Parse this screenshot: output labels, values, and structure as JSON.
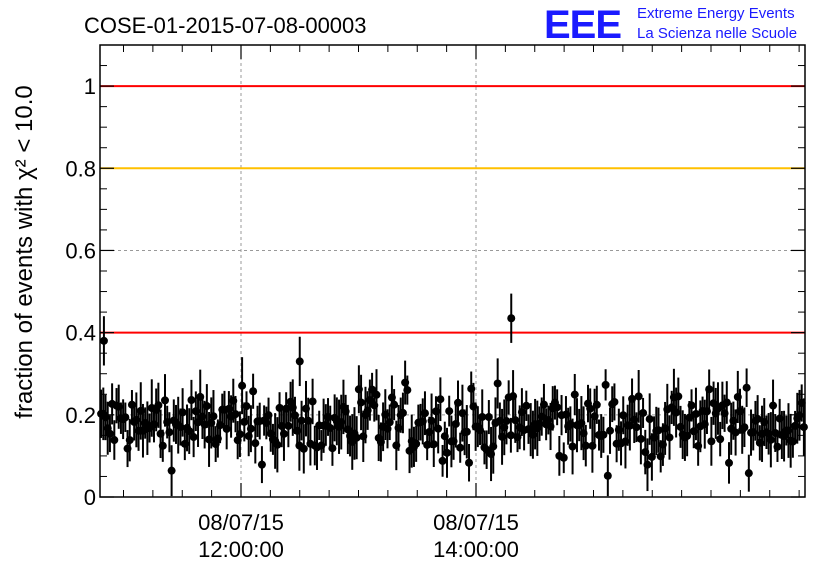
{
  "chart_data": {
    "type": "scatter",
    "title": "COSE-01-2015-07-08-00003",
    "ylabel": "fraction of events with χ² < 10.0",
    "xlabel": "",
    "ylim": [
      0,
      1.1
    ],
    "yticks": [
      {
        "value": 0,
        "label": "0"
      },
      {
        "value": 0.2,
        "label": "0.2"
      },
      {
        "value": 0.4,
        "label": "0.4"
      },
      {
        "value": 0.6,
        "label": "0.6"
      },
      {
        "value": 0.8,
        "label": "0.8"
      },
      {
        "value": 1.0,
        "label": "1"
      }
    ],
    "xlim": [
      "10:48:00",
      "16:48:00"
    ],
    "xticks": [
      {
        "value": "12:00:00",
        "date": "08/07/15",
        "time": "12:00:00"
      },
      {
        "value": "14:00:00",
        "date": "08/07/15",
        "time": "14:00:00"
      }
    ],
    "grid": true,
    "reference_lines": [
      {
        "y": 1.0,
        "color": "#ff0000"
      },
      {
        "y": 0.8,
        "color": "#ffc000"
      },
      {
        "y": 0.4,
        "color": "#ff0000"
      }
    ],
    "marker_color": "#000000",
    "approx_point_count": 320,
    "typical_range": [
      0.05,
      0.3
    ],
    "highlighted_points": [
      {
        "x": "10:50:00",
        "y": 0.38
      },
      {
        "x": "12:30:00",
        "y": 0.33
      },
      {
        "x": "14:18:00",
        "y": 0.435
      }
    ]
  },
  "logo": {
    "mark": "EEE",
    "line1": "Extreme Energy Events",
    "line2": "La Scienza nelle Scuole",
    "color": "#1a1aff"
  }
}
